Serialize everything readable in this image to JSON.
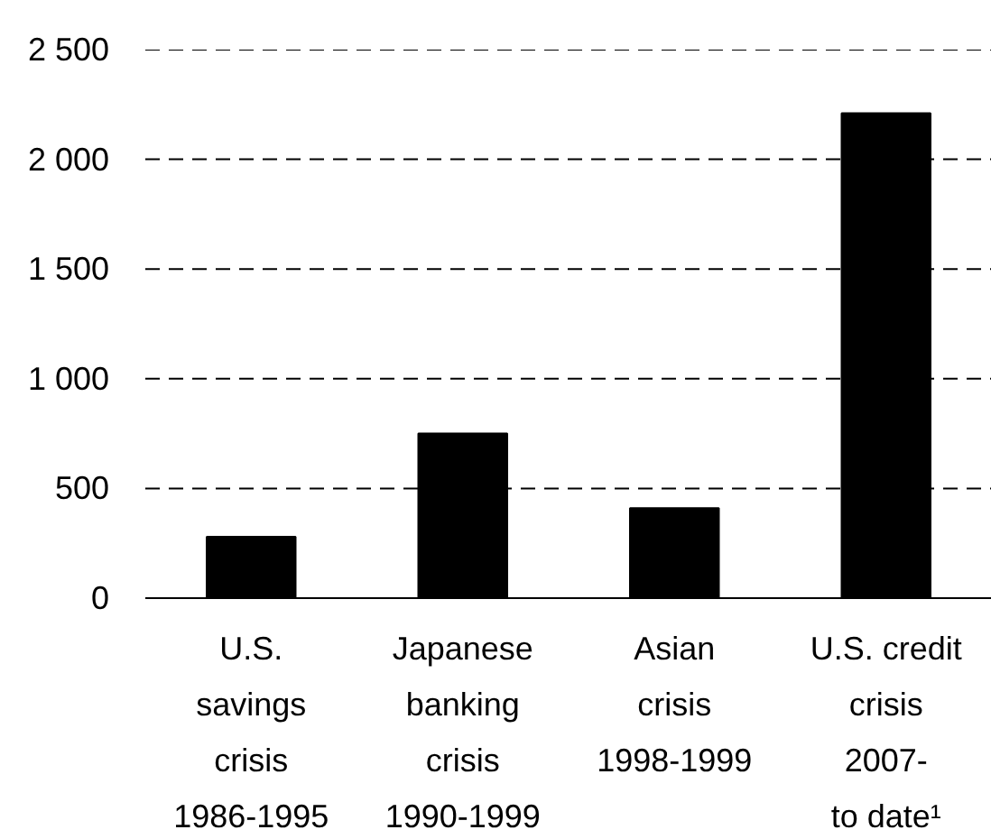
{
  "chart_data": {
    "type": "bar",
    "categories": [
      "U.S.\nsavings\ncrisis\n1986-1995",
      "Japanese\nbanking\ncrisis\n1990-1999",
      "Asian\ncrisis\n1998-1999",
      "U.S. credit\ncrisis\n2007-\nto date¹"
    ],
    "values": [
      280,
      750,
      410,
      2210
    ],
    "color": "#000000",
    "ylim": [
      0,
      2500
    ],
    "yticks": [
      0,
      500,
      {
        "value": 1000,
        "label": "1 000"
      },
      {
        "value": 1500,
        "label": "1 500"
      },
      {
        "value": 2000,
        "label": "2 000"
      },
      {
        "value": 2500,
        "label": "2 500"
      }
    ],
    "grid": "y"
  }
}
